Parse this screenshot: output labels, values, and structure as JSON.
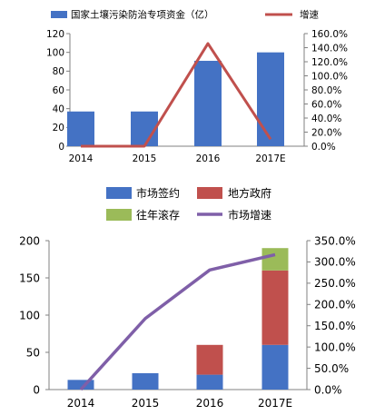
{
  "colors": {
    "bar_blue": "#4472C4",
    "bar_red": "#C0504D",
    "bar_green": "#9BBB59",
    "line_red": "#C0504D",
    "line_purple": "#7F5FA8",
    "axis": "#808080"
  },
  "chart_data": [
    {
      "type": "bar+line",
      "title": "",
      "categories": [
        "2014",
        "2015",
        "2016",
        "2017E"
      ],
      "ylim_left": [
        0,
        120
      ],
      "yticks_left": [
        "0",
        "20",
        "40",
        "60",
        "80",
        "100",
        "120"
      ],
      "ylim_right": [
        0,
        160
      ],
      "yticks_right": [
        "0.0%",
        "20.0%",
        "40.0%",
        "60.0%",
        "80.0%",
        "100.0%",
        "120.0%",
        "140.0%",
        "160.0%"
      ],
      "legend_position": "top",
      "grid": false,
      "series": [
        {
          "name": "国家土壤污染防治专项资金（亿）",
          "kind": "bar",
          "axis": "left",
          "color": "#4472C4",
          "values": [
            37,
            37,
            91,
            100
          ]
        },
        {
          "name": "增速",
          "kind": "line",
          "axis": "right",
          "color": "#C0504D",
          "values": [
            0,
            0,
            145.9,
            9.9
          ]
        }
      ]
    },
    {
      "type": "stacked-bar+line",
      "title": "",
      "categories": [
        "2014",
        "2015",
        "2016",
        "2017E"
      ],
      "ylim_left": [
        0,
        200
      ],
      "yticks_left": [
        "0",
        "50",
        "100",
        "150",
        "200"
      ],
      "ylim_right": [
        0,
        350
      ],
      "yticks_right": [
        "0.0%",
        "50.0%",
        "100.0%",
        "150.0%",
        "200.0%",
        "250.0%",
        "300.0%",
        "350.0%"
      ],
      "legend_position": "top",
      "grid": false,
      "series": [
        {
          "name": "市场签约",
          "kind": "bar",
          "axis": "left",
          "color": "#4472C4",
          "values": [
            13,
            22,
            20,
            60
          ]
        },
        {
          "name": "地方政府",
          "kind": "bar",
          "axis": "left",
          "color": "#C0504D",
          "values": [
            0,
            0,
            40,
            100
          ]
        },
        {
          "name": "往年滚存",
          "kind": "bar",
          "axis": "left",
          "color": "#9BBB59",
          "values": [
            0,
            0,
            0,
            30
          ]
        },
        {
          "name": "市场增速",
          "kind": "line",
          "axis": "right",
          "color": "#7F5FA8",
          "values": [
            0,
            167,
            281,
            317
          ]
        }
      ]
    }
  ]
}
